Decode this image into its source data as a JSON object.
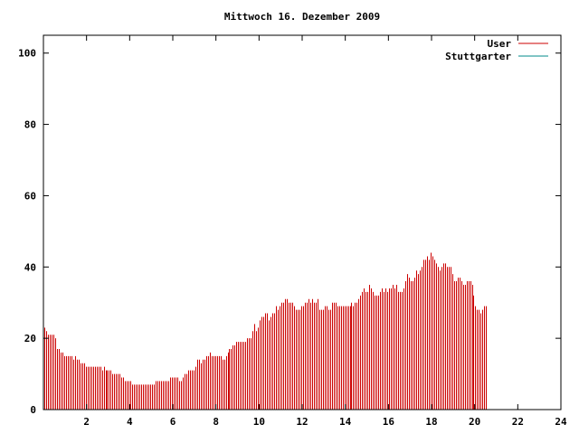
{
  "chart_data": {
    "type": "bar",
    "title": "Mittwoch 16. Dezember 2009",
    "xlabel": "",
    "ylabel": "",
    "xlim": [
      0,
      24
    ],
    "ylim": [
      0,
      105
    ],
    "x_ticks": [
      "2",
      "4",
      "6",
      "8",
      "10",
      "12",
      "14",
      "16",
      "18",
      "20",
      "22",
      "24"
    ],
    "y_ticks": [
      "0",
      "20",
      "40",
      "60",
      "80",
      "100"
    ],
    "grid": false,
    "legend_position": "top-right",
    "series": [
      {
        "name": "User",
        "color": "#cc0000",
        "x_start": 0,
        "x_step": 0.0833,
        "values": [
          23,
          22,
          21,
          21,
          21,
          21,
          20,
          17,
          17,
          16,
          16,
          15,
          15,
          15,
          15,
          15,
          14,
          15,
          14,
          14,
          13,
          13,
          13,
          12,
          12,
          12,
          12,
          12,
          12,
          12,
          12,
          12,
          11,
          12,
          11,
          11,
          11,
          11,
          10,
          10,
          10,
          10,
          10,
          9,
          9,
          8,
          8,
          8,
          8,
          7,
          7,
          7,
          7,
          7,
          7,
          7,
          7,
          7,
          7,
          7,
          7,
          7,
          8,
          8,
          8,
          8,
          8,
          8,
          8,
          8,
          9,
          9,
          9,
          9,
          9,
          8,
          8,
          9,
          10,
          10,
          11,
          11,
          11,
          11,
          12,
          14,
          14,
          13,
          14,
          14,
          15,
          15,
          16,
          15,
          15,
          15,
          15,
          15,
          15,
          14,
          14,
          15,
          16,
          17,
          17,
          18,
          18,
          19,
          19,
          19,
          19,
          19,
          19,
          20,
          20,
          20,
          22,
          24,
          22,
          23,
          25,
          26,
          26,
          27,
          27,
          25,
          26,
          27,
          27,
          29,
          28,
          29,
          30,
          30,
          31,
          31,
          30,
          30,
          30,
          29,
          28,
          28,
          28,
          29,
          29,
          30,
          30,
          31,
          30,
          31,
          30,
          30,
          31,
          28,
          28,
          28,
          29,
          29,
          28,
          28,
          30,
          30,
          30,
          29,
          29,
          29,
          29,
          29,
          29,
          29,
          29,
          30,
          29,
          30,
          30,
          31,
          32,
          33,
          34,
          33,
          33,
          35,
          34,
          33,
          32,
          32,
          32,
          33,
          34,
          33,
          34,
          33,
          34,
          34,
          35,
          34,
          35,
          33,
          33,
          33,
          34,
          36,
          38,
          37,
          36,
          36,
          37,
          39,
          38,
          39,
          40,
          42,
          42,
          43,
          42,
          44,
          43,
          42,
          41,
          40,
          39,
          40,
          41,
          41,
          40,
          40,
          40,
          38,
          36,
          36,
          37,
          37,
          36,
          35,
          35,
          36,
          36,
          36,
          35,
          32,
          29,
          28,
          28,
          27,
          28,
          29,
          29
        ]
      },
      {
        "name": "Stuttgarter",
        "color": "#008b8b",
        "values": []
      }
    ]
  }
}
